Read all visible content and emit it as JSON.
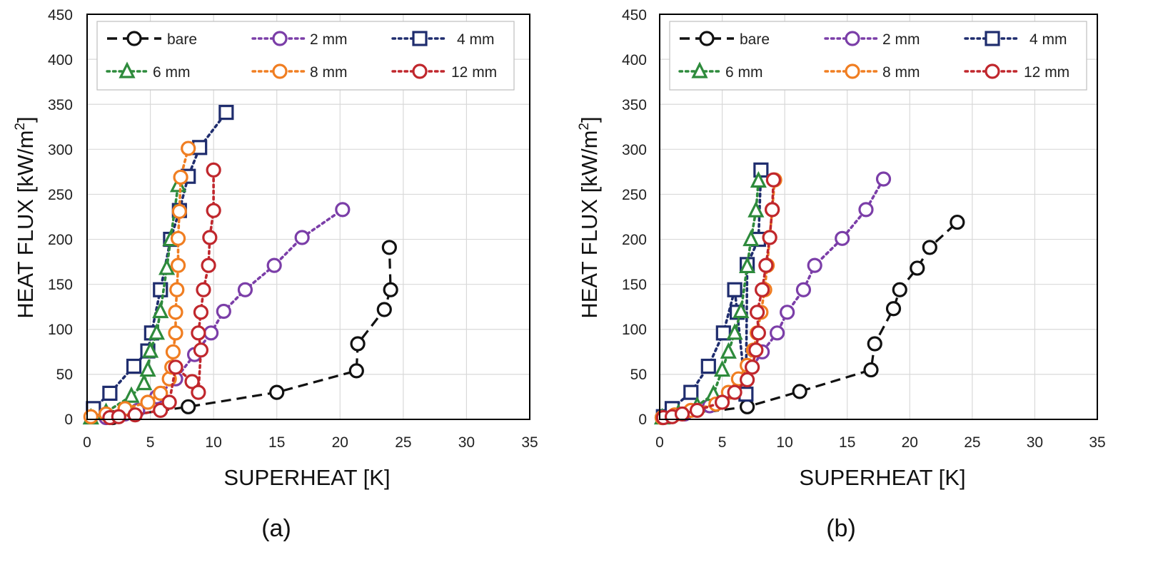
{
  "colors": {
    "bare": "#111111",
    "2 mm": "#7b3ea8",
    "4 mm": "#1f2d6e",
    "6 mm": "#2e8b3c",
    "8 mm": "#f07e22",
    "12 mm": "#c0272d",
    "grid": "#d9d9d9",
    "frame": "#000000"
  },
  "chart_data": [
    {
      "type": "line",
      "caption": "(a)",
      "xlabel": "SUPERHEAT [K]",
      "ylabel": "HEAT FLUX [kW/m2]",
      "ylabel_main": "HEAT FLUX [kW/m",
      "ylabel_sup": "2",
      "ylabel_end": "]",
      "xlim": [
        0,
        35
      ],
      "ylim": [
        0,
        450
      ],
      "xticks": [
        0,
        5,
        10,
        15,
        20,
        25,
        30,
        35
      ],
      "yticks": [
        0,
        50,
        100,
        150,
        200,
        250,
        300,
        350,
        400,
        450
      ],
      "grid": true,
      "legend": "top, 3 columns",
      "series": [
        {
          "name": "bare",
          "marker": "circle",
          "linestyle": "dashed",
          "x": [
            2.0,
            8.0,
            15.0,
            21.3,
            21.4,
            23.5,
            24.0,
            23.9
          ],
          "y": [
            2,
            14,
            30,
            54,
            84,
            122,
            144,
            191
          ]
        },
        {
          "name": "2 mm",
          "marker": "circle",
          "linestyle": "dotted",
          "x": [
            1.5,
            3.0,
            4.0,
            5.5,
            7.0,
            8.5,
            9.8,
            10.8,
            12.5,
            14.8,
            17.0,
            20.2
          ],
          "y": [
            2,
            6,
            10,
            25,
            45,
            72,
            96,
            120,
            144,
            171,
            202,
            233
          ]
        },
        {
          "name": "4 mm",
          "marker": "square",
          "linestyle": "dotted",
          "x": [
            0.5,
            1.8,
            3.7,
            4.8,
            5.1,
            5.8,
            6.6,
            7.3,
            8.0,
            8.9,
            11.0
          ],
          "y": [
            12,
            29,
            59,
            76,
            96,
            144,
            200,
            232,
            270,
            302,
            341
          ]
        },
        {
          "name": "6 mm",
          "marker": "triangle",
          "linestyle": "dotted",
          "x": [
            0.3,
            1.5,
            3.5,
            4.5,
            4.8,
            5.0,
            5.5,
            5.8,
            6.3,
            6.6,
            7.2
          ],
          "y": [
            2,
            8,
            26,
            40,
            55,
            76,
            96,
            120,
            168,
            200,
            260
          ]
        },
        {
          "name": "8 mm",
          "marker": "circle",
          "linestyle": "dotted",
          "x": [
            0.3,
            1.5,
            3.0,
            4.8,
            5.8,
            6.5,
            6.7,
            6.8,
            7.0,
            7.0,
            7.1,
            7.2,
            7.2,
            7.3,
            7.4,
            8.0
          ],
          "y": [
            3,
            6,
            12,
            19,
            29,
            45,
            58,
            75,
            96,
            119,
            144,
            171,
            201,
            231,
            269,
            301
          ]
        },
        {
          "name": "12 mm",
          "marker": "circle",
          "linestyle": "dotted",
          "x": [
            1.8,
            2.5,
            3.8,
            5.8,
            6.5,
            7.0,
            8.3,
            8.8,
            9.0,
            8.8,
            9.0,
            9.2,
            9.6,
            9.7,
            10.0,
            10.0
          ],
          "y": [
            2,
            3,
            5,
            10,
            19,
            58,
            42,
            30,
            77,
            96,
            119,
            144,
            171,
            202,
            232,
            277
          ]
        }
      ]
    },
    {
      "type": "line",
      "caption": "(b)",
      "xlabel": "SUPERHEAT [K]",
      "ylabel": "HEAT FLUX [kW/m2]",
      "ylabel_main": "HEAT FLUX [kW/m",
      "ylabel_sup": "2",
      "ylabel_end": "]",
      "xlim": [
        0,
        35
      ],
      "ylim": [
        0,
        450
      ],
      "xticks": [
        0,
        5,
        10,
        15,
        20,
        25,
        30,
        35
      ],
      "yticks": [
        0,
        50,
        100,
        150,
        200,
        250,
        300,
        350,
        400,
        450
      ],
      "grid": true,
      "legend": "top, 3 columns",
      "series": [
        {
          "name": "bare",
          "marker": "circle",
          "linestyle": "dashed",
          "x": [
            0.2,
            7.0,
            11.2,
            16.9,
            17.2,
            18.7,
            19.2,
            20.6,
            21.6,
            23.8
          ],
          "y": [
            2,
            14,
            31,
            55,
            84,
            123,
            144,
            168,
            191,
            219
          ]
        },
        {
          "name": "2 mm",
          "marker": "circle",
          "linestyle": "dotted",
          "x": [
            0.3,
            2.0,
            4.0,
            6.5,
            8.2,
            9.4,
            10.2,
            11.5,
            12.4,
            14.6,
            16.5,
            17.9
          ],
          "y": [
            2,
            6,
            15,
            38,
            75,
            96,
            119,
            144,
            171,
            201,
            233,
            267
          ]
        },
        {
          "name": "4 mm",
          "marker": "square",
          "linestyle": "dotted",
          "x": [
            0.3,
            1.0,
            2.5,
            3.9,
            5.1,
            6.0,
            6.2,
            6.9,
            7.0,
            7.9,
            8.1
          ],
          "y": [
            3,
            12,
            30,
            59,
            96,
            144,
            119,
            28,
            172,
            200,
            277
          ]
        },
        {
          "name": "6 mm",
          "marker": "triangle",
          "linestyle": "dotted",
          "x": [
            0.2,
            1.5,
            3.0,
            4.3,
            5.0,
            5.5,
            6.0,
            6.5,
            7.0,
            7.3,
            7.7,
            7.9
          ],
          "y": [
            2,
            7,
            15,
            28,
            55,
            75,
            96,
            120,
            170,
            200,
            232,
            265
          ]
        },
        {
          "name": "8 mm",
          "marker": "circle",
          "linestyle": "dotted",
          "x": [
            0.2,
            1.2,
            2.5,
            4.5,
            5.5,
            6.3,
            7.0,
            7.5,
            7.8,
            8.1,
            8.4,
            8.6,
            8.8,
            9.0,
            9.2
          ],
          "y": [
            2,
            5,
            10,
            17,
            30,
            45,
            60,
            77,
            96,
            119,
            144,
            171,
            202,
            233,
            266
          ]
        },
        {
          "name": "12 mm",
          "marker": "circle",
          "linestyle": "dotted",
          "x": [
            0.3,
            1.0,
            1.8,
            3.0,
            5.0,
            6.0,
            7.0,
            7.4,
            7.7,
            7.9,
            7.8,
            8.2,
            8.5,
            8.8,
            9.0,
            9.1
          ],
          "y": [
            2,
            3,
            6,
            10,
            19,
            30,
            44,
            58,
            77,
            96,
            119,
            144,
            171,
            202,
            233,
            266
          ]
        }
      ]
    }
  ]
}
